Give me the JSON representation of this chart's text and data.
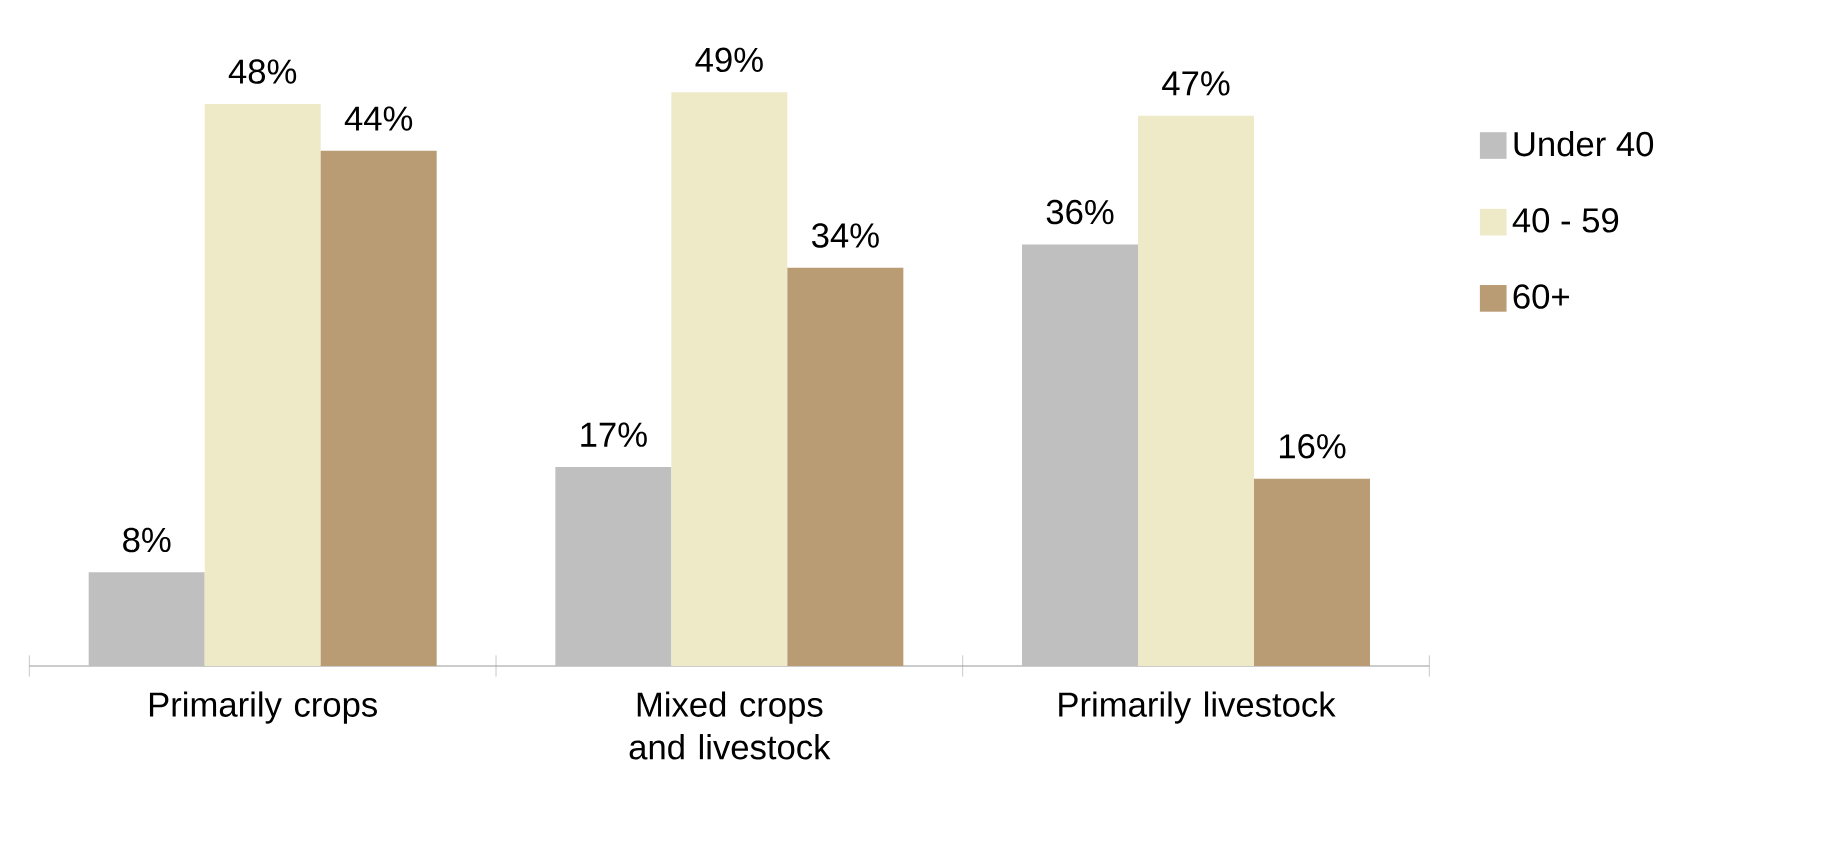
{
  "chart_data": {
    "type": "bar",
    "categories": [
      "Primarily crops",
      "Mixed crops and livestock",
      "Primarily livestock"
    ],
    "series": [
      {
        "name": "Under 40",
        "color": "#bfbfbf",
        "values": [
          8,
          17,
          36
        ],
        "value_labels": [
          "8%",
          "17%",
          "36%"
        ]
      },
      {
        "name": "40 - 59",
        "color": "#eeeac8",
        "values": [
          48,
          49,
          47
        ],
        "value_labels": [
          "48%",
          "49%",
          "47%"
        ]
      },
      {
        "name": "60+",
        "color": "#b99b74",
        "values": [
          44,
          34,
          16
        ],
        "value_labels": [
          "44%",
          "34%",
          "16%"
        ]
      }
    ],
    "legend": "right"
  }
}
